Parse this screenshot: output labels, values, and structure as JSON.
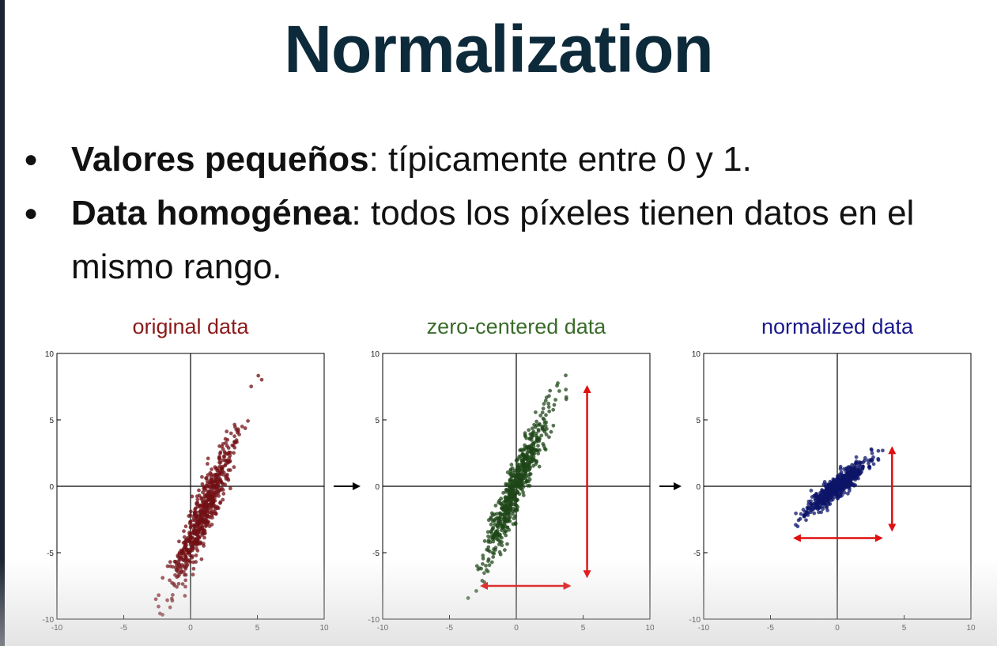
{
  "slide": {
    "title": "Normalization",
    "bullets": [
      {
        "bold": "Valores pequeños",
        "rest": ": típicamente entre 0 y 1."
      },
      {
        "bold": "Data homogénea",
        "rest": ": todos los píxeles tienen datos en el mismo rango."
      }
    ]
  },
  "chart_data": [
    {
      "type": "scatter",
      "title": "original data",
      "title_color": "#8b1a1a",
      "point_color": "#7a0f14",
      "xlim": [
        -10,
        10
      ],
      "ylim": [
        -10,
        10
      ],
      "xticks": [
        "-10",
        "-5",
        "0",
        "5",
        "10"
      ],
      "yticks": [
        "10",
        "5",
        "0",
        "-5",
        "-10"
      ],
      "distribution": {
        "mean": [
          1.0,
          -2.0
        ],
        "sx": 1.2,
        "sy": 2.8,
        "rho": 0.93,
        "n": 600,
        "seed": 3
      },
      "arrows": []
    },
    {
      "type": "scatter",
      "title": "zero-centered data",
      "title_color": "#3a6b2a",
      "point_color": "#1d4a17",
      "xlim": [
        -10,
        10
      ],
      "ylim": [
        -10,
        10
      ],
      "xticks": [
        "-10",
        "-5",
        "0",
        "5",
        "10"
      ],
      "yticks": [
        "10",
        "5",
        "0",
        "-5",
        "-10"
      ],
      "distribution": {
        "mean": [
          0,
          0
        ],
        "sx": 1.2,
        "sy": 2.8,
        "rho": 0.93,
        "n": 600,
        "seed": 7
      },
      "arrows": [
        {
          "from": [
            5.3,
            7.5
          ],
          "to": [
            5.3,
            -6.8
          ]
        },
        {
          "from": [
            -2.6,
            -7.5
          ],
          "to": [
            4.0,
            -7.5
          ]
        }
      ]
    },
    {
      "type": "scatter",
      "title": "normalized data",
      "title_color": "#1a1a8c",
      "point_color": "#0b1470",
      "xlim": [
        -10,
        10
      ],
      "ylim": [
        -10,
        10
      ],
      "xticks": [
        "-10",
        "-5",
        "0",
        "5",
        "10"
      ],
      "yticks": [
        "10",
        "5",
        "0",
        "-5",
        "-10"
      ],
      "distribution": {
        "mean": [
          0,
          0
        ],
        "sx": 1.1,
        "sy": 0.95,
        "rho": 0.9,
        "n": 600,
        "seed": 11
      },
      "arrows": [
        {
          "from": [
            4.1,
            2.9
          ],
          "to": [
            4.1,
            -3.3
          ]
        },
        {
          "from": [
            -3.2,
            -3.9
          ],
          "to": [
            3.3,
            -3.9
          ]
        }
      ]
    }
  ],
  "flow_arrow_color": "#000000",
  "annotation_arrow_color": "#e01010",
  "axis_color": "#000000"
}
